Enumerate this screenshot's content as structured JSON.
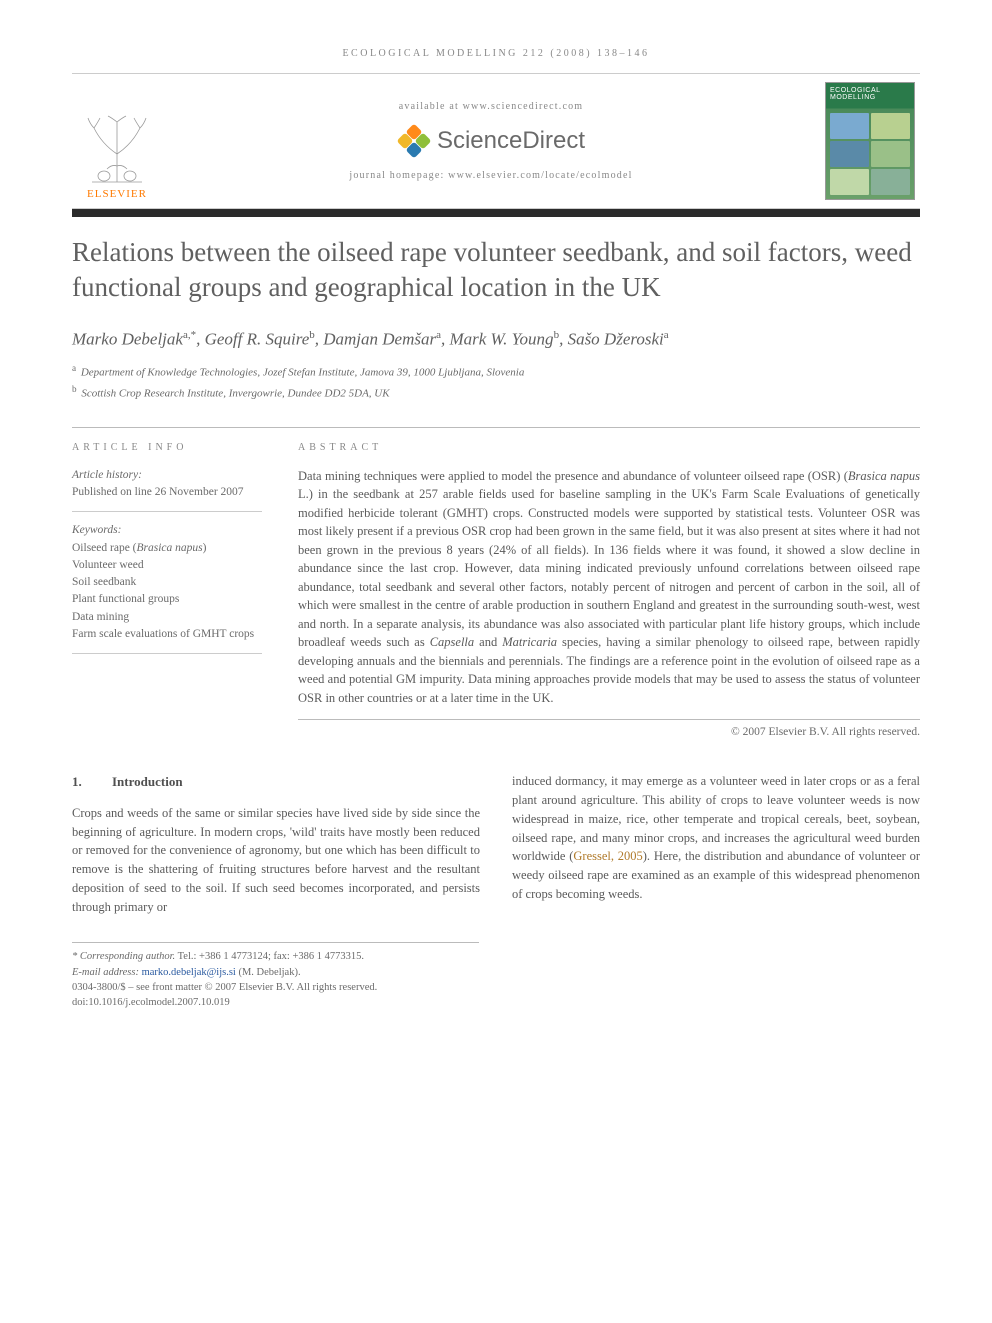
{
  "running_head": "ECOLOGICAL MODELLING 212 (2008) 138–146",
  "header": {
    "elsevier_label": "ELSEVIER",
    "available_at": "available at www.sciencedirect.com",
    "sciencedirect_label": "ScienceDirect",
    "journal_homepage": "journal homepage: www.elsevier.com/locate/ecolmodel",
    "cover_title": "ECOLOGICAL MODELLING",
    "sd_colors": {
      "orange": "#ff8a1a",
      "green": "#8fbf3a",
      "blue": "#2a7ab0",
      "yellow": "#f0b82a"
    }
  },
  "article": {
    "title": "Relations between the oilseed rape volunteer seedbank, and soil factors, weed functional groups and geographical location in the UK",
    "authors_html": "Marko Debeljak<sup>a,*</sup>, Geoff R. Squire<sup>b</sup>, Damjan Demšar<sup>a</sup>, Mark W. Young<sup>b</sup>, Sašo Džeroski<sup>a</sup>",
    "affiliations": [
      {
        "sup": "a",
        "text": "Department of Knowledge Technologies, Jozef Stefan Institute, Jamova 39, 1000 Ljubljana, Slovenia"
      },
      {
        "sup": "b",
        "text": "Scottish Crop Research Institute, Invergowrie, Dundee DD2 5DA, UK"
      }
    ]
  },
  "article_info": {
    "heading": "ARTICLE INFO",
    "history_label": "Article history:",
    "history_text": "Published on line 26 November 2007",
    "keywords_label": "Keywords:",
    "keywords": [
      "Oilseed rape (Brasica napus)",
      "Volunteer weed",
      "Soil seedbank",
      "Plant functional groups",
      "Data mining",
      "Farm scale evaluations of GMHT crops"
    ]
  },
  "abstract": {
    "heading": "ABSTRACT",
    "text": "Data mining techniques were applied to model the presence and abundance of volunteer oilseed rape (OSR) (Brasica napus L.) in the seedbank at 257 arable fields used for baseline sampling in the UK's Farm Scale Evaluations of genetically modified herbicide tolerant (GMHT) crops. Constructed models were supported by statistical tests. Volunteer OSR was most likely present if a previous OSR crop had been grown in the same field, but it was also present at sites where it had not been grown in the previous 8 years (24% of all fields). In 136 fields where it was found, it showed a slow decline in abundance since the last crop. However, data mining indicated previously unfound correlations between oilseed rape abundance, total seedbank and several other factors, notably percent of nitrogen and percent of carbon in the soil, all of which were smallest in the centre of arable production in southern England and greatest in the surrounding south-west, west and north. In a separate analysis, its abundance was also associated with particular plant life history groups, which include broadleaf weeds such as Capsella and Matricaria species, having a similar phenology to oilseed rape, between rapidly developing annuals and the biennials and perennials. The findings are a reference point in the evolution of oilseed rape as a weed and potential GM impurity. Data mining approaches provide models that may be used to assess the status of volunteer OSR in other countries or at a later time in the UK.",
    "copyright": "© 2007 Elsevier B.V. All rights reserved."
  },
  "section1": {
    "number": "1.",
    "title": "Introduction",
    "col1": "Crops and weeds of the same or similar species have lived side by side since the beginning of agriculture. In modern crops, 'wild' traits have mostly been reduced or removed for the convenience of agronomy, but one which has been difficult to remove is the shattering of fruiting structures before harvest and the resultant deposition of seed to the soil. If such seed becomes incorporated, and persists through primary or",
    "col2_a": "induced dormancy, it may emerge as a volunteer weed in later crops or as a feral plant around agriculture. This ability of crops to leave volunteer weeds is now widespread in maize, rice, other temperate and tropical cereals, beet, soybean, oilseed rape, and many minor crops, and increases the agricultural weed burden worldwide (",
    "col2_cite": "Gressel, 2005",
    "col2_b": "). Here, the distribution and abundance of volunteer or weedy oilseed rape are examined as an example of this widespread phenomenon of crops becoming weeds."
  },
  "footnotes": {
    "corr_label": "* Corresponding author.",
    "tel": "Tel.: +386 1 4773124; fax: +386 1 4773315.",
    "email_label": "E-mail address:",
    "email": "marko.debeljak@ijs.si",
    "email_suffix": "(M. Debeljak).",
    "issn": "0304-3800/$ – see front matter © 2007 Elsevier B.V. All rights reserved.",
    "doi": "doi:10.1016/j.ecolmodel.2007.10.019"
  },
  "colors": {
    "text": "#5a5a5a",
    "rule": "#2b2b2b",
    "link": "#2a5aa0",
    "cite": "#b07a2a",
    "elsevier_orange": "#ff7a00"
  }
}
